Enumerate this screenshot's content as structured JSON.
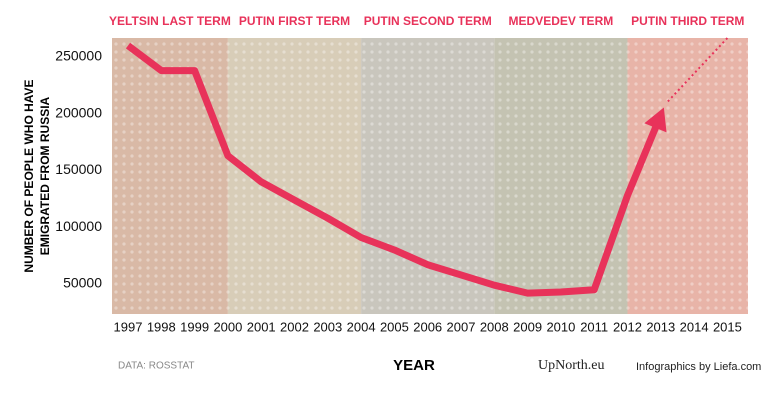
{
  "chart_data": {
    "type": "line",
    "terms": [
      {
        "label": "YELTSIN LAST TERM",
        "color": "#d9b9a6"
      },
      {
        "label": "PUTIN FIRST TERM",
        "color": "#d8cdb8"
      },
      {
        "label": "PUTIN SECOND TERM",
        "color": "#c9c6bd"
      },
      {
        "label": "MEDVEDEV TERM",
        "color": "#c4c3b2"
      },
      {
        "label": "PUTIN THIRD TERM",
        "color": "#e8b4a8"
      }
    ],
    "ylabel": [
      "NUMBER OF PEOPLE WHO HAVE",
      "EMIGRATED FROM RUSSIA"
    ],
    "xlabel": "YEAR",
    "categories": [
      "1997",
      "1998",
      "1999",
      "2000",
      "2001",
      "2002",
      "2003",
      "2004",
      "2005",
      "2006",
      "2007",
      "2008",
      "2009",
      "2010",
      "2011",
      "2012",
      "2013",
      "2014",
      "2015"
    ],
    "series": [
      {
        "color": "#e8325a",
        "values": [
          260000,
          238000,
          238000,
          163000,
          140000,
          124000,
          108000,
          91000,
          80000,
          67000,
          58000,
          49000,
          42000,
          43000,
          45000,
          128000,
          199000,
          null,
          null
        ]
      }
    ],
    "ylim": [
      23600,
      266700
    ],
    "yticks": [
      50000,
      100000,
      150000,
      200000,
      250000
    ],
    "source": "DATA: ROSSTAT",
    "brand": "UpNorth.eu",
    "credit": "Infographics by Liefa.com"
  }
}
